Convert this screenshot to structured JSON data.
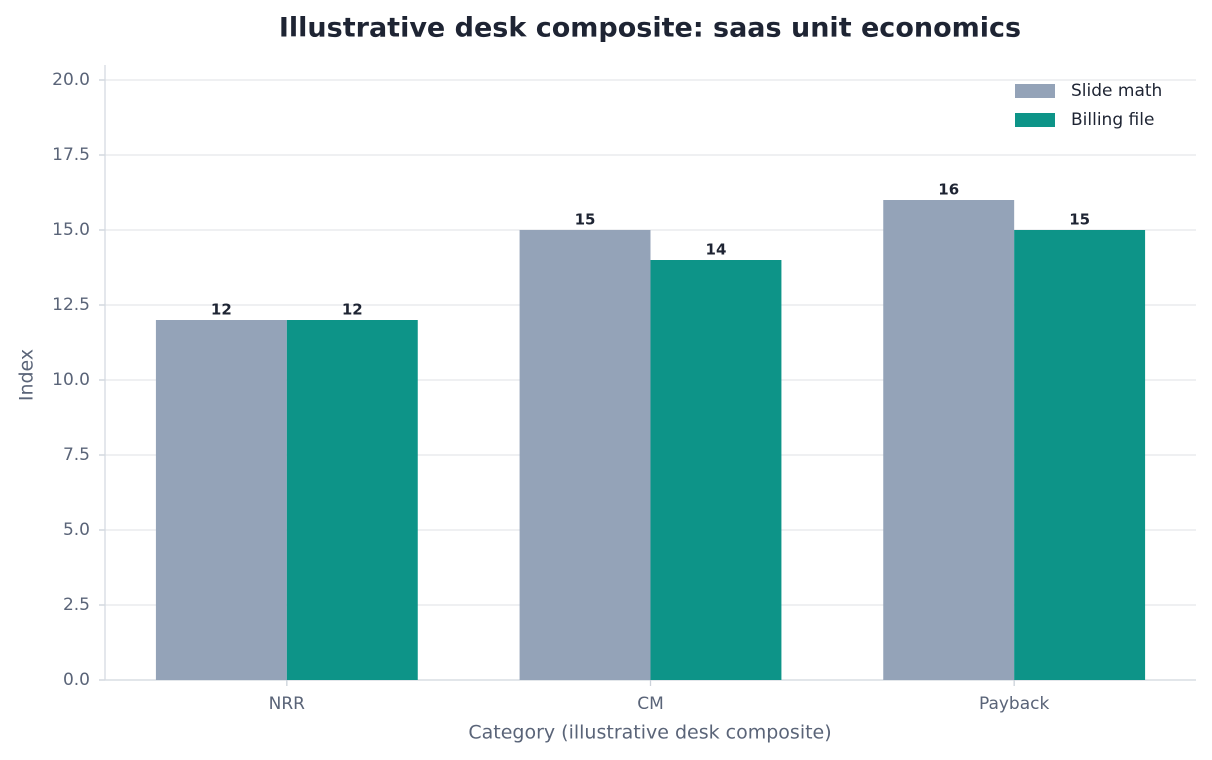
{
  "chart_data": {
    "type": "bar",
    "title": "Illustrative desk composite: saas unit economics",
    "x_label": "Category (illustrative desk composite)",
    "y_label": "Index",
    "categories": [
      "NRR",
      "CM",
      "Payback"
    ],
    "series": [
      {
        "name": "Slide math",
        "color": "#94a3b8",
        "values": [
          12,
          15,
          16
        ]
      },
      {
        "name": "Billing file",
        "color": "#0d9488",
        "values": [
          12,
          14,
          15
        ]
      }
    ],
    "ylim": [
      0,
      20.5
    ],
    "yticks": [
      {
        "value": 0,
        "label": "0.0"
      },
      2.5,
      {
        "value": 5,
        "label": "5.0"
      },
      7.5,
      {
        "value": 10,
        "label": "10.0"
      },
      12.5,
      {
        "value": 15,
        "label": "15.0"
      },
      17.5,
      {
        "value": 20,
        "label": "20.0"
      }
    ],
    "grid": true,
    "legend": "upper-right"
  }
}
